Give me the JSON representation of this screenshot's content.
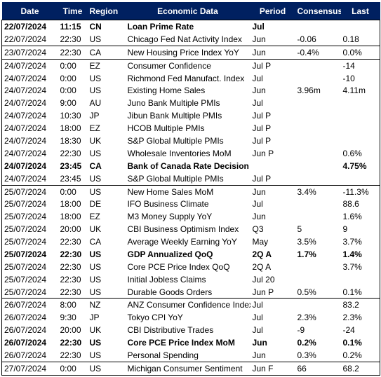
{
  "headers": {
    "date": "Date",
    "time": "Time",
    "region": "Region",
    "event": "Economic Data",
    "period": "Period",
    "consensus": "Consensus",
    "last": "Last"
  },
  "rows": [
    {
      "date": "22/07/2024",
      "time": "11:15",
      "region": "CN",
      "event": "Loan Prime Rate",
      "period": "Jul",
      "consensus": "",
      "last": "",
      "bold": true,
      "day_start": true
    },
    {
      "date": "22/07/2024",
      "time": "22:30",
      "region": "US",
      "event": "Chicago Fed Nat Activity Index",
      "period": "Jun",
      "consensus": "-0.06",
      "last": "0.18",
      "bold": false,
      "day_start": false
    },
    {
      "date": "23/07/2024",
      "time": "22:30",
      "region": "CA",
      "event": "New Housing Price Index YoY",
      "period": "Jun",
      "consensus": "-0.4%",
      "last": "0.0%",
      "bold": false,
      "day_start": true
    },
    {
      "date": "24/07/2024",
      "time": "0:00",
      "region": "EZ",
      "event": "Consumer Confidence",
      "period": "Jul P",
      "consensus": "",
      "last": "-14",
      "bold": false,
      "day_start": true
    },
    {
      "date": "24/07/2024",
      "time": "0:00",
      "region": "US",
      "event": "Richmond Fed Manufact. Index",
      "period": "Jul",
      "consensus": "",
      "last": "-10",
      "bold": false,
      "day_start": false
    },
    {
      "date": "24/07/2024",
      "time": "0:00",
      "region": "US",
      "event": "Existing Home Sales",
      "period": "Jun",
      "consensus": "3.96m",
      "last": "4.11m",
      "bold": false,
      "day_start": false
    },
    {
      "date": "24/07/2024",
      "time": "9:00",
      "region": "AU",
      "event": "Juno Bank Multiple PMIs",
      "period": "Jul",
      "consensus": "",
      "last": "",
      "bold": false,
      "day_start": false
    },
    {
      "date": "24/07/2024",
      "time": "10:30",
      "region": "JP",
      "event": "Jibun Bank Multiple PMIs",
      "period": "Jul P",
      "consensus": "",
      "last": "",
      "bold": false,
      "day_start": false
    },
    {
      "date": "24/07/2024",
      "time": "18:00",
      "region": "EZ",
      "event": "HCOB Multiple PMIs",
      "period": "Jul P",
      "consensus": "",
      "last": "",
      "bold": false,
      "day_start": false
    },
    {
      "date": "24/07/2024",
      "time": "18:30",
      "region": "UK",
      "event": "S&P Global Multiple PMIs",
      "period": "Jul P",
      "consensus": "",
      "last": "",
      "bold": false,
      "day_start": false
    },
    {
      "date": "24/07/2024",
      "time": "22:30",
      "region": "US",
      "event": "Wholesale Inventories MoM",
      "period": "Jun P",
      "consensus": "",
      "last": "0.6%",
      "bold": false,
      "day_start": false
    },
    {
      "date": "24/07/2024",
      "time": "23:45",
      "region": "CA",
      "event": "Bank of Canada Rate Decision",
      "period": "",
      "consensus": "",
      "last": "4.75%",
      "bold": true,
      "day_start": false
    },
    {
      "date": "24/07/2024",
      "time": "23:45",
      "region": "US",
      "event": "S&P Global Multiple PMIs",
      "period": "Jul P",
      "consensus": "",
      "last": "",
      "bold": false,
      "day_start": false
    },
    {
      "date": "25/07/2024",
      "time": "0:00",
      "region": "US",
      "event": "New Home Sales MoM",
      "period": "Jun",
      "consensus": "3.4%",
      "last": "-11.3%",
      "bold": false,
      "day_start": true
    },
    {
      "date": "25/07/2024",
      "time": "18:00",
      "region": "DE",
      "event": "IFO Business Climate",
      "period": "Jul",
      "consensus": "",
      "last": "88.6",
      "bold": false,
      "day_start": false
    },
    {
      "date": "25/07/2024",
      "time": "18:00",
      "region": "EZ",
      "event": "M3 Money Supply YoY",
      "period": "Jun",
      "consensus": "",
      "last": "1.6%",
      "bold": false,
      "day_start": false
    },
    {
      "date": "25/07/2024",
      "time": "20:00",
      "region": "UK",
      "event": "CBI Business Optimism Index",
      "period": "Q3",
      "consensus": "5",
      "last": "9",
      "bold": false,
      "day_start": false
    },
    {
      "date": "25/07/2024",
      "time": "22:30",
      "region": "CA",
      "event": "Average Weekly Earning YoY",
      "period": "May",
      "consensus": "3.5%",
      "last": "3.7%",
      "bold": false,
      "day_start": false
    },
    {
      "date": "25/07/2024",
      "time": "22:30",
      "region": "US",
      "event": "GDP Annualized QoQ",
      "period": "2Q A",
      "consensus": "1.7%",
      "last": "1.4%",
      "bold": true,
      "day_start": false
    },
    {
      "date": "25/07/2024",
      "time": "22:30",
      "region": "US",
      "event": "Core PCE Price Index QoQ",
      "period": "2Q A",
      "consensus": "",
      "last": "3.7%",
      "bold": false,
      "day_start": false
    },
    {
      "date": "25/07/2024",
      "time": "22:30",
      "region": "US",
      "event": "Initial Jobless Claims",
      "period": "Jul 20",
      "consensus": "",
      "last": "",
      "bold": false,
      "day_start": false
    },
    {
      "date": "25/07/2024",
      "time": "22:30",
      "region": "US",
      "event": "Durable Goods Orders",
      "period": "Jun P",
      "consensus": "0.5%",
      "last": "0.1%",
      "bold": false,
      "day_start": false
    },
    {
      "date": "26/07/2024",
      "time": "8:00",
      "region": "NZ",
      "event": "ANZ Consumer Confidence Index",
      "period": "Jul",
      "consensus": "",
      "last": "83.2",
      "bold": false,
      "day_start": true
    },
    {
      "date": "26/07/2024",
      "time": "9:30",
      "region": "JP",
      "event": "Tokyo CPI YoY",
      "period": "Jul",
      "consensus": "2.3%",
      "last": "2.3%",
      "bold": false,
      "day_start": false
    },
    {
      "date": "26/07/2024",
      "time": "20:00",
      "region": "UK",
      "event": "CBI Distributive Trades",
      "period": "Jul",
      "consensus": "-9",
      "last": "-24",
      "bold": false,
      "day_start": false
    },
    {
      "date": "26/07/2024",
      "time": "22:30",
      "region": "US",
      "event": "Core PCE Price Index MoM",
      "period": "Jun",
      "consensus": "0.2%",
      "last": "0.1%",
      "bold": true,
      "day_start": false
    },
    {
      "date": "26/07/2024",
      "time": "22:30",
      "region": "US",
      "event": "Personal Spending",
      "period": "Jun",
      "consensus": "0.3%",
      "last": "0.2%",
      "bold": false,
      "day_start": false
    },
    {
      "date": "27/07/2024",
      "time": "0:00",
      "region": "US",
      "event": "Michigan Consumer Sentiment",
      "period": "Jun F",
      "consensus": "66",
      "last": "68.2",
      "bold": false,
      "day_start": true
    }
  ],
  "colors": {
    "header_bg": "#002060",
    "header_text": "#ffffff"
  }
}
